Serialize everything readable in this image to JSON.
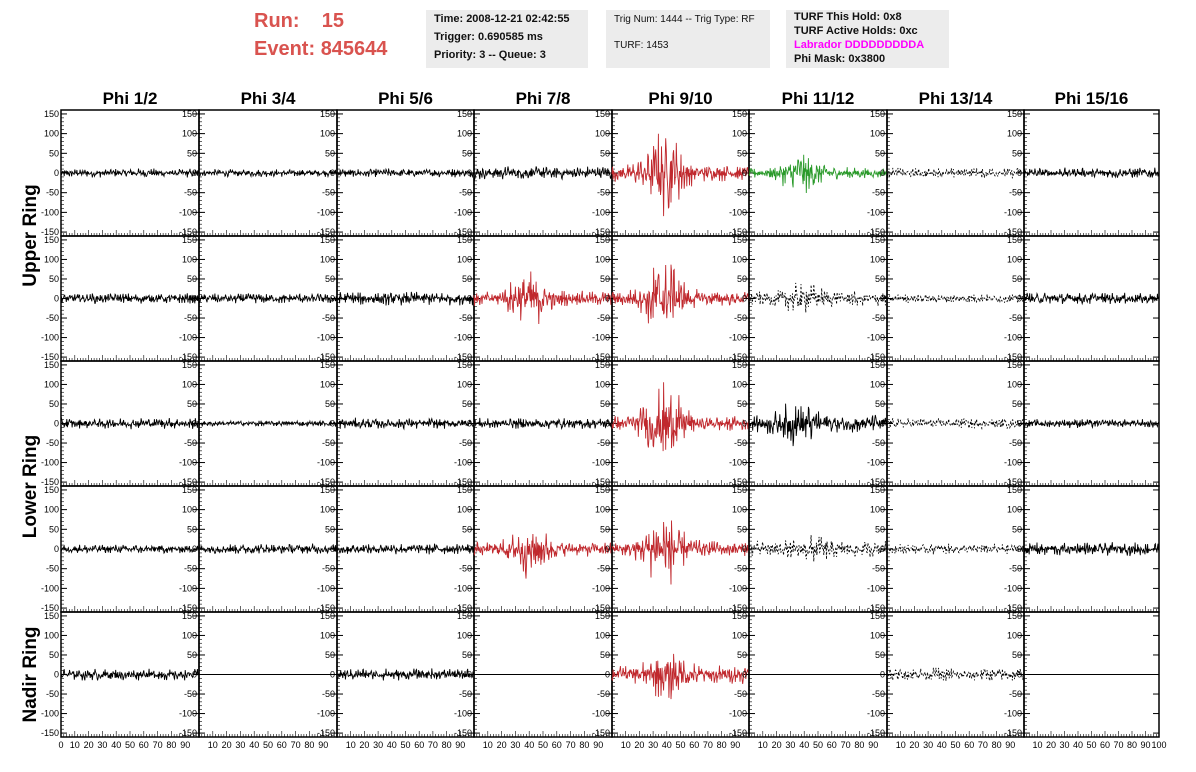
{
  "header": {
    "run_label": "Run:",
    "run_value": "15",
    "event_label": "Event:",
    "event_value": "845644",
    "time_text": "Time: 2008-12-21 02:42:55",
    "trigger_text": "Trigger: 0.690585 ms",
    "priority_text": "Priority: 3 -- Queue: 3",
    "trig_text": "Trig Num: 1444 -- Trig Type: RF",
    "turf_text": "TURF: 1453",
    "turf_hold_text": "TURF This Hold: 0x8",
    "turf_active_text": "TURF Active Holds: 0xc",
    "labrador_text": "Labrador DDDDDDDDDA",
    "phimask_text": "Phi Mask: 0x3800"
  },
  "colors": {
    "run_color": "#d9534f",
    "labrador_color": "#ff00ff",
    "info_bg": "#ececec",
    "trace_black": "#000000",
    "trace_red": "#c0282d",
    "trace_green": "#2a9a2a"
  },
  "chart_data": {
    "type": "line",
    "columns": [
      "Phi 1/2",
      "Phi 3/4",
      "Phi 5/6",
      "Phi 7/8",
      "Phi 9/10",
      "Phi 11/12",
      "Phi 13/14",
      "Phi 15/16"
    ],
    "ring_labels": [
      "Upper Ring",
      "Lower Ring",
      "Nadir Ring"
    ],
    "ylim": [
      -160,
      160
    ],
    "xlim": [
      0,
      100
    ],
    "y_ticks": [
      -150,
      -100,
      -50,
      0,
      50,
      100,
      150
    ],
    "x_ticks": [
      0,
      10,
      20,
      30,
      40,
      50,
      60,
      70,
      80,
      90,
      100
    ],
    "panels": [
      [
        {
          "style": "black",
          "amp": 12
        },
        {
          "style": "black",
          "amp": 10
        },
        {
          "style": "black",
          "amp": 12
        },
        {
          "style": "black",
          "amp": 18
        },
        {
          "style": "red",
          "amp": 22,
          "burst_center": 38,
          "burst_amp": 95
        },
        {
          "style": "green",
          "amp": 15,
          "burst_center": 38,
          "burst_amp": 45
        },
        {
          "style": "dashed",
          "amp": 14
        },
        {
          "style": "black",
          "amp": 15
        }
      ],
      [
        {
          "style": "black",
          "amp": 14
        },
        {
          "style": "black",
          "amp": 14
        },
        {
          "style": "black",
          "amp": 18
        },
        {
          "style": "red",
          "amp": 20,
          "burst_center": 40,
          "burst_amp": 60
        },
        {
          "style": "red",
          "amp": 20,
          "burst_center": 38,
          "burst_amp": 95
        },
        {
          "style": "dashed",
          "amp": 20,
          "burst_center": 40,
          "burst_amp": 25
        },
        {
          "style": "dashed",
          "amp": 12
        },
        {
          "style": "black",
          "amp": 16
        }
      ],
      [
        {
          "style": "black",
          "amp": 15
        },
        {
          "style": "black",
          "amp": 8
        },
        {
          "style": "black",
          "amp": 15
        },
        {
          "style": "black",
          "amp": 15
        },
        {
          "style": "red",
          "amp": 20,
          "burst_center": 38,
          "burst_amp": 100
        },
        {
          "style": "black",
          "amp": 25,
          "burst_center": 35,
          "burst_amp": 40
        },
        {
          "style": "dashed",
          "amp": 14
        },
        {
          "style": "black",
          "amp": 12
        }
      ],
      [
        {
          "style": "black",
          "amp": 12
        },
        {
          "style": "black",
          "amp": 14
        },
        {
          "style": "black",
          "amp": 15
        },
        {
          "style": "red",
          "amp": 20,
          "burst_center": 40,
          "burst_amp": 60
        },
        {
          "style": "red",
          "amp": 22,
          "burst_center": 38,
          "burst_amp": 85
        },
        {
          "style": "dashed",
          "amp": 22,
          "burst_center": 45,
          "burst_amp": 15
        },
        {
          "style": "dashed",
          "amp": 14
        },
        {
          "style": "black",
          "amp": 18
        }
      ],
      [
        {
          "style": "black",
          "amp": 16
        },
        {
          "style": "flat",
          "amp": 0
        },
        {
          "style": "black",
          "amp": 16
        },
        {
          "style": "flat",
          "amp": 0
        },
        {
          "style": "red",
          "amp": 25,
          "burst_center": 40,
          "burst_amp": 50
        },
        {
          "style": "flat",
          "amp": 0
        },
        {
          "style": "dashed",
          "amp": 18
        },
        {
          "style": "flat",
          "amp": 0
        }
      ]
    ]
  }
}
